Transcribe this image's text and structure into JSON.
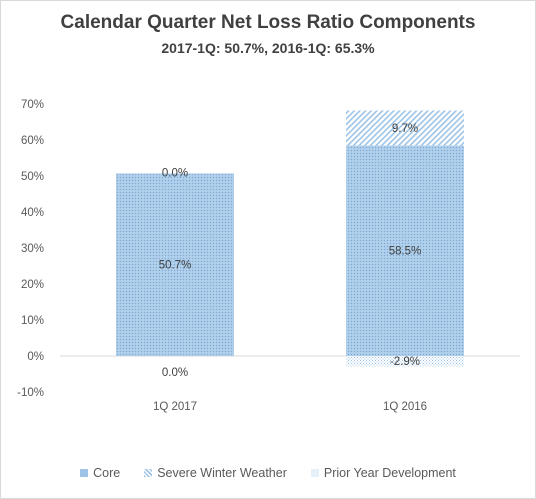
{
  "chart_data": {
    "type": "bar",
    "stacked": true,
    "title": "Calendar Quarter Net Loss Ratio Components",
    "subtitle": "2017-1Q: 50.7%, 2016-1Q: 65.3%",
    "categories": [
      "1Q 2017",
      "1Q 2016"
    ],
    "series": [
      {
        "name": "Core",
        "values": [
          50.7,
          58.5
        ],
        "labels": [
          "50.7%",
          "58.5%"
        ],
        "color": "#9dc3e6",
        "pattern": "dots"
      },
      {
        "name": "Severe Winter Weather",
        "values": [
          0.0,
          9.7
        ],
        "labels": [
          "0.0%",
          "9.7%"
        ],
        "color": "#9dc3e6",
        "pattern": "diagonal"
      },
      {
        "name": "Prior Year Development",
        "values": [
          0.0,
          -2.9
        ],
        "labels": [
          "0.0%",
          "-2.9%"
        ],
        "color": "#9dc3e6",
        "pattern": "fine-dots"
      }
    ],
    "ylim": [
      -10,
      70
    ],
    "yticks": [
      "-10%",
      "0%",
      "10%",
      "20%",
      "30%",
      "40%",
      "50%",
      "60%",
      "70%"
    ],
    "ytick_values": [
      -10,
      0,
      10,
      20,
      30,
      40,
      50,
      60,
      70
    ],
    "grid": false,
    "legend": "bottom"
  }
}
